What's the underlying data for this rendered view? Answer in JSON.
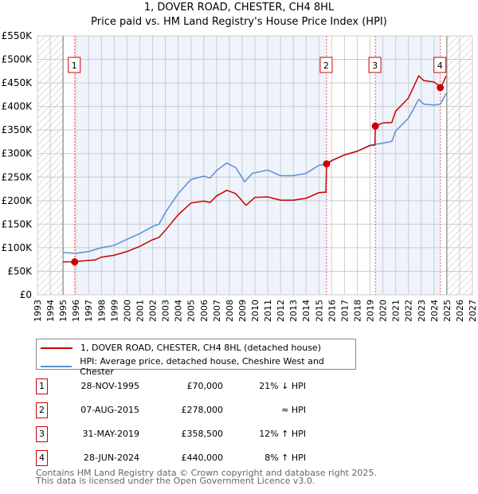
{
  "chart_data": {
    "type": "line",
    "title": "1, DOVER ROAD, CHESTER, CH4 8HL",
    "subtitle": "Price paid vs. HM Land Registry's House Price Index (HPI)",
    "xlim": [
      1993,
      2027
    ],
    "ylim": [
      0,
      550000
    ],
    "x_ticks": [
      "1993",
      "1994",
      "1995",
      "1996",
      "1997",
      "1998",
      "1999",
      "2000",
      "2001",
      "2002",
      "2003",
      "2004",
      "2005",
      "2006",
      "2007",
      "2008",
      "2009",
      "2010",
      "2011",
      "2012",
      "2013",
      "2014",
      "2015",
      "2016",
      "2017",
      "2018",
      "2019",
      "2020",
      "2021",
      "2022",
      "2023",
      "2024",
      "2025",
      "2026",
      "2027"
    ],
    "y_ticks": [
      {
        "v": 0,
        "label": "£0"
      },
      {
        "v": 50000,
        "label": "£50K"
      },
      {
        "v": 100000,
        "label": "£100K"
      },
      {
        "v": 150000,
        "label": "£150K"
      },
      {
        "v": 200000,
        "label": "£200K"
      },
      {
        "v": 250000,
        "label": "£250K"
      },
      {
        "v": 300000,
        "label": "£300K"
      },
      {
        "v": 350000,
        "label": "£350K"
      },
      {
        "v": 400000,
        "label": "£400K"
      },
      {
        "v": 450000,
        "label": "£450K"
      },
      {
        "v": 500000,
        "label": "£500K"
      },
      {
        "v": 550000,
        "label": "£550K"
      }
    ],
    "hatched_ranges": [
      [
        1993,
        1995
      ],
      [
        2025,
        2027
      ]
    ],
    "shaded_ranges": [
      [
        1995.91,
        2015.6
      ],
      [
        2019.41,
        2024.49
      ]
    ],
    "series": [
      {
        "name": "1, DOVER ROAD, CHESTER, CH4 8HL (detached house)",
        "color": "#cc0000",
        "points": [
          [
            1995,
            70000
          ],
          [
            1995.91,
            70000
          ],
          [
            1996.5,
            72000
          ],
          [
            1997.5,
            74000
          ],
          [
            1998,
            80000
          ],
          [
            1999,
            84000
          ],
          [
            2000,
            92000
          ],
          [
            2001,
            103000
          ],
          [
            2002,
            117000
          ],
          [
            2002.5,
            122000
          ],
          [
            2003,
            137000
          ],
          [
            2004,
            170000
          ],
          [
            2005,
            195000
          ],
          [
            2006,
            199000
          ],
          [
            2006.5,
            196000
          ],
          [
            2007,
            210000
          ],
          [
            2007.8,
            222000
          ],
          [
            2008.5,
            215000
          ],
          [
            2009.3,
            190000
          ],
          [
            2010,
            207000
          ],
          [
            2011,
            208000
          ],
          [
            2012,
            201000
          ],
          [
            2013,
            201000
          ],
          [
            2014,
            205000
          ],
          [
            2015,
            217000
          ],
          [
            2015.55,
            218000
          ],
          [
            2015.6,
            278000
          ],
          [
            2016,
            285000
          ],
          [
            2017,
            297000
          ],
          [
            2018,
            305000
          ],
          [
            2019,
            317000
          ],
          [
            2019.38,
            318000
          ],
          [
            2019.41,
            358500
          ],
          [
            2020,
            365000
          ],
          [
            2020.7,
            366000
          ],
          [
            2021,
            390000
          ],
          [
            2022,
            418000
          ],
          [
            2022.8,
            465000
          ],
          [
            2023.2,
            455000
          ],
          [
            2024,
            452000
          ],
          [
            2024.3,
            446000
          ],
          [
            2024.49,
            440000
          ],
          [
            2024.7,
            450000
          ],
          [
            2024.95,
            465000
          ]
        ]
      },
      {
        "name": "HPI: Average price, detached house, Cheshire West and Chester",
        "color": "#5b8fd6",
        "points": [
          [
            1995,
            90000
          ],
          [
            1996,
            88000
          ],
          [
            1997,
            92000
          ],
          [
            1998,
            100000
          ],
          [
            1999,
            105000
          ],
          [
            2000,
            118000
          ],
          [
            2001,
            130000
          ],
          [
            2002,
            145000
          ],
          [
            2002.5,
            150000
          ],
          [
            2003,
            175000
          ],
          [
            2004,
            215000
          ],
          [
            2005,
            245000
          ],
          [
            2006,
            252000
          ],
          [
            2006.5,
            248000
          ],
          [
            2007,
            264000
          ],
          [
            2007.8,
            280000
          ],
          [
            2008.5,
            270000
          ],
          [
            2009.2,
            240000
          ],
          [
            2009.8,
            258000
          ],
          [
            2010.5,
            262000
          ],
          [
            2011,
            265000
          ],
          [
            2012,
            253000
          ],
          [
            2013,
            253000
          ],
          [
            2014,
            258000
          ],
          [
            2015,
            275000
          ],
          [
            2015.6,
            278000
          ],
          [
            2016,
            285000
          ],
          [
            2017,
            297000
          ],
          [
            2018,
            305000
          ],
          [
            2019,
            318000
          ],
          [
            2019.5,
            320000
          ],
          [
            2020,
            322000
          ],
          [
            2020.7,
            326000
          ],
          [
            2021,
            348000
          ],
          [
            2022,
            375000
          ],
          [
            2022.8,
            415000
          ],
          [
            2023.2,
            405000
          ],
          [
            2024,
            403000
          ],
          [
            2024.5,
            405000
          ],
          [
            2024.95,
            428000
          ]
        ]
      }
    ],
    "sales": [
      {
        "n": "1",
        "x": 1995.91,
        "y": 70000
      },
      {
        "n": "2",
        "x": 2015.6,
        "y": 278000
      },
      {
        "n": "3",
        "x": 2019.41,
        "y": 358500
      },
      {
        "n": "4",
        "x": 2024.49,
        "y": 440000
      }
    ]
  },
  "legend": {
    "property": "1, DOVER ROAD, CHESTER, CH4 8HL (detached house)",
    "hpi": "HPI: Average price, detached house, Cheshire West and Chester"
  },
  "transactions": [
    {
      "n": "1",
      "date": "28-NOV-1995",
      "price": "£70,000",
      "hpi": "21% ↓ HPI"
    },
    {
      "n": "2",
      "date": "07-AUG-2015",
      "price": "£278,000",
      "hpi": "≈ HPI"
    },
    {
      "n": "3",
      "date": "31-MAY-2019",
      "price": "£358,500",
      "hpi": "12% ↑ HPI"
    },
    {
      "n": "4",
      "date": "28-JUN-2024",
      "price": "£440,000",
      "hpi": "8% ↑ HPI"
    }
  ],
  "footer": {
    "line1": "Contains HM Land Registry data © Crown copyright and database right 2025.",
    "line2": "This data is licensed under the Open Government Licence v3.0."
  }
}
